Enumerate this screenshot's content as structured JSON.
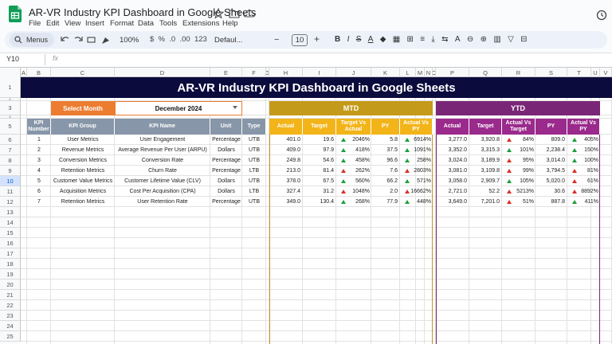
{
  "app": {
    "doc_title": "AR-VR Industry KPI Dashboard in Google Sheets",
    "menus": [
      "File",
      "Edit",
      "View",
      "Insert",
      "Format",
      "Data",
      "Tools",
      "Extensions",
      "Help"
    ],
    "toolbar": {
      "search": "Menus",
      "zoom": "100%",
      "font": "Defaul...",
      "font_size": "10"
    },
    "name_box": "Y10",
    "fx": "fx",
    "columns": [
      "A",
      "B",
      "C",
      "D",
      "E",
      "F",
      "G",
      "H",
      "I",
      "J",
      "K",
      "L",
      "M",
      "N",
      "O",
      "P",
      "Q",
      "R",
      "S",
      "T",
      "U",
      "V"
    ],
    "rows": [
      "1",
      "2",
      "3",
      "4",
      "5",
      "6",
      "7",
      "8",
      "9",
      "10",
      "11",
      "12",
      "13",
      "14",
      "15",
      "16",
      "17",
      "18",
      "19",
      "20",
      "21",
      "22",
      "23",
      "24",
      "25"
    ]
  },
  "dashboard": {
    "title": "AR-VR Industry KPI Dashboard in Google Sheets",
    "select_month_label": "Select Month",
    "select_month_value": "December 2024",
    "mtd_label": "MTD",
    "ytd_label": "YTD",
    "left_headers": [
      "KPI Number",
      "KPI Group",
      "KPI Name",
      "Unit",
      "Type"
    ],
    "mtd_headers": [
      "Actual",
      "Target",
      "Target Vs Actual",
      "PY",
      "Actual Vs PY"
    ],
    "ytd_headers": [
      "Actual",
      "Target",
      "Actual Vs Target",
      "PY",
      "Actual Vs PY"
    ],
    "up_color": "#1e9e3a",
    "down_color": "#d93025",
    "rows": [
      {
        "number": "1",
        "group": "User Metrics",
        "name": "User Engagement",
        "unit": "Percentage",
        "type": "UTB",
        "mtd": [
          "401.0",
          "19.6",
          "2046%",
          "5.8",
          "6914%"
        ],
        "mtd_good": [
          true,
          true
        ],
        "ytd": [
          "3,277.0",
          "3,920.8",
          "84%",
          "809.0",
          "405%"
        ],
        "ytd_good": [
          false,
          true
        ]
      },
      {
        "number": "2",
        "group": "Revenue Metrics",
        "name": "Average Revenue Per User (ARPU)",
        "unit": "Dollars",
        "type": "UTB",
        "mtd": [
          "409.0",
          "97.9",
          "418%",
          "37.5",
          "1091%"
        ],
        "mtd_good": [
          true,
          true
        ],
        "ytd": [
          "3,352.0",
          "3,315.3",
          "101%",
          "2,238.4",
          "150%"
        ],
        "ytd_good": [
          true,
          true
        ]
      },
      {
        "number": "3",
        "group": "Conversion Metrics",
        "name": "Conversion Rate",
        "unit": "Percentage",
        "type": "UTB",
        "mtd": [
          "249.8",
          "54.6",
          "458%",
          "96.6",
          "258%"
        ],
        "mtd_good": [
          true,
          true
        ],
        "ytd": [
          "3,024.0",
          "3,189.9",
          "95%",
          "3,014.0",
          "100%"
        ],
        "ytd_good": [
          false,
          true
        ]
      },
      {
        "number": "4",
        "group": "Retention Metrics",
        "name": "Churn Rate",
        "unit": "Percentage",
        "type": "LTB",
        "mtd": [
          "213.0",
          "81.4",
          "262%",
          "7.6",
          "2803%"
        ],
        "mtd_good": [
          false,
          false
        ],
        "ytd": [
          "3,081.0",
          "3,109.8",
          "99%",
          "3,794.5",
          "81%"
        ],
        "ytd_good": [
          false,
          false
        ]
      },
      {
        "number": "5",
        "group": "Customer Value Metrics",
        "name": "Customer Lifetime Value (CLV)",
        "unit": "Dollars",
        "type": "UTB",
        "mtd": [
          "378.0",
          "67.5",
          "560%",
          "66.2",
          "571%"
        ],
        "mtd_good": [
          true,
          true
        ],
        "ytd": [
          "3,058.0",
          "2,909.7",
          "105%",
          "5,020.0",
          "61%"
        ],
        "ytd_good": [
          true,
          false
        ]
      },
      {
        "number": "6",
        "group": "Acquisition Metrics",
        "name": "Cost Per Acquisition (CPA)",
        "unit": "Dollars",
        "type": "LTB",
        "mtd": [
          "327.4",
          "31.2",
          "1048%",
          "2.0",
          "16662%"
        ],
        "mtd_good": [
          false,
          false
        ],
        "ytd": [
          "2,721.0",
          "52.2",
          "5213%",
          "30.6",
          "8892%"
        ],
        "ytd_good": [
          false,
          false
        ]
      },
      {
        "number": "7",
        "group": "Retention Metrics",
        "name": "User Retention Rate",
        "unit": "Percentage",
        "type": "UTB",
        "mtd": [
          "349.0",
          "130.4",
          "268%",
          "77.9",
          "448%"
        ],
        "mtd_good": [
          true,
          true
        ],
        "ytd": [
          "3,649.0",
          "7,201.0",
          "51%",
          "887.8",
          "411%"
        ],
        "ytd_good": [
          false,
          true
        ]
      }
    ]
  }
}
